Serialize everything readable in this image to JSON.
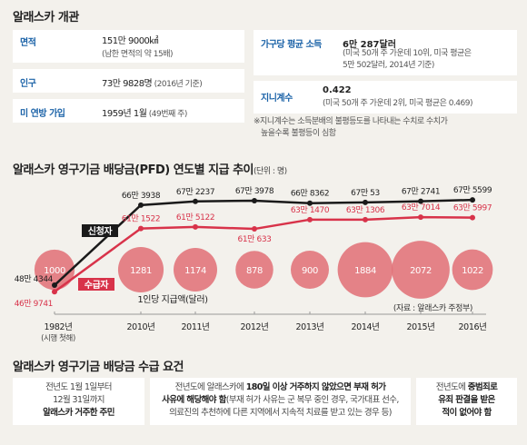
{
  "title_top": "알래스카 개관",
  "info_left": [
    {
      "label": "면적",
      "value": "151만 9000㎢",
      "sub": "(남한 면적의 약 15배)"
    },
    {
      "label": "인구",
      "value": "73만 9828명",
      "value_suffix": " (2016년 기준)"
    },
    {
      "label": "미 연방 가입",
      "value": "1959년 1월",
      "value_suffix": " (49번째 주)"
    }
  ],
  "info_right": {
    "income": {
      "label": "가구당 평균 소득",
      "value": "6만 287달러",
      "sub1": "(미국 50개 주 가운데 10위, 미국 평균은",
      "sub2": "5만 502달러, 2014년 기준)"
    },
    "gini": {
      "label": "지니계수",
      "value": "0.422",
      "sub": "(미국 50개 주 가운데 2위, 미국 평균은 0.469)"
    }
  },
  "note_line1": "※지니계수는 소득분배의 불평등도를 나타내는 수치로 수치가",
  "note_line2": "높을수록 불평등이 심함",
  "chart_title": "알래스카 영구기금 배당금(PFD) 연도별 지급 추이",
  "chart_unit": "(단위 : 명)",
  "title_bottom": "알래스카 영구기금 배당금 수급 요건",
  "requirements": [
    {
      "line1": "전년도 1월 1일부터",
      "line2": "12월 31일까지",
      "line3": "알래스카 거주한 주민"
    },
    {
      "line1a": "전년도에 알래스카에 ",
      "line1b": "180일 이상 거주하지 않았으면 부재 허가",
      "line2a": "사유에 해당해야 함",
      "line2b": "(부재 허가 사유는 군 복무 중인 경우, 국가대표 선수,",
      "line3": "의료진의 추천하에 다른 지역에서 지속적 치료를 받고 있는 경우 등)"
    },
    {
      "line1a": "전년도에 ",
      "line1b": "중범죄로",
      "line2": "유죄 판결을 받은",
      "line3": "적이 없어야 함"
    }
  ],
  "chart_data": {
    "type": "line",
    "x": [
      "1982년",
      "2010년",
      "2011년",
      "2012년",
      "2013년",
      "2014년",
      "2015년",
      "2016년"
    ],
    "x_sub": "(시행 첫해)",
    "series": [
      {
        "name": "신청자",
        "color": "#1a1a1a",
        "values": [
          484344,
          663938,
          672237,
          673978,
          668362,
          670053,
          672741,
          675599
        ],
        "labels": [
          "48만 4344",
          "66만 3938",
          "67만 2237",
          "67만 3978",
          "66만 8362",
          "67만 53",
          "67만 2741",
          "67만 5599"
        ]
      },
      {
        "name": "수급자",
        "color": "#d8334a",
        "values": [
          469741,
          611522,
          615122,
          610633,
          631470,
          631306,
          637014,
          635997
        ],
        "labels": [
          "46만 9741",
          "61만 1522",
          "61만 5122",
          "61만 633",
          "63만 1470",
          "63만 1306",
          "63만 7014",
          "63만 5997"
        ]
      }
    ],
    "bubbles": {
      "name": "1인당 지급액(달러)",
      "values": [
        1000,
        1281,
        1174,
        878,
        900,
        1884,
        2072,
        1022
      ],
      "labels": [
        "1000",
        "1281",
        "1174",
        "878",
        "900",
        "1884",
        "2072",
        "1022"
      ],
      "color": "#e06f76"
    },
    "source": "(자료 : 알래스카 주정부)"
  }
}
